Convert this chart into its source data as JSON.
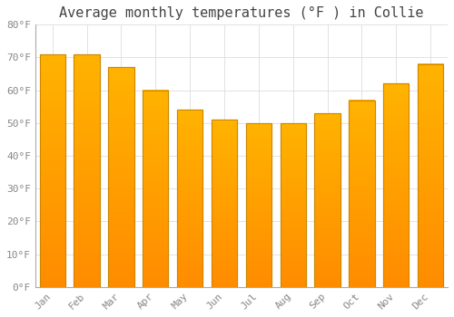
{
  "title": "Average monthly temperatures (°F ) in Collie",
  "months": [
    "Jan",
    "Feb",
    "Mar",
    "Apr",
    "May",
    "Jun",
    "Jul",
    "Aug",
    "Sep",
    "Oct",
    "Nov",
    "Dec"
  ],
  "values": [
    71,
    71,
    67,
    60,
    54,
    51,
    50,
    50,
    53,
    57,
    62,
    68
  ],
  "bar_color_top": "#FFA500",
  "bar_color_bottom": "#FFD700",
  "bar_edge_color": "#CC8800",
  "background_color": "#FFFFFF",
  "grid_color": "#DDDDDD",
  "ylim": [
    0,
    80
  ],
  "yticks": [
    0,
    10,
    20,
    30,
    40,
    50,
    60,
    70,
    80
  ],
  "ytick_labels": [
    "0°F",
    "10°F",
    "20°F",
    "30°F",
    "40°F",
    "50°F",
    "60°F",
    "70°F",
    "80°F"
  ],
  "title_fontsize": 11,
  "tick_fontsize": 8,
  "tick_color": "#888888",
  "font_family": "monospace"
}
